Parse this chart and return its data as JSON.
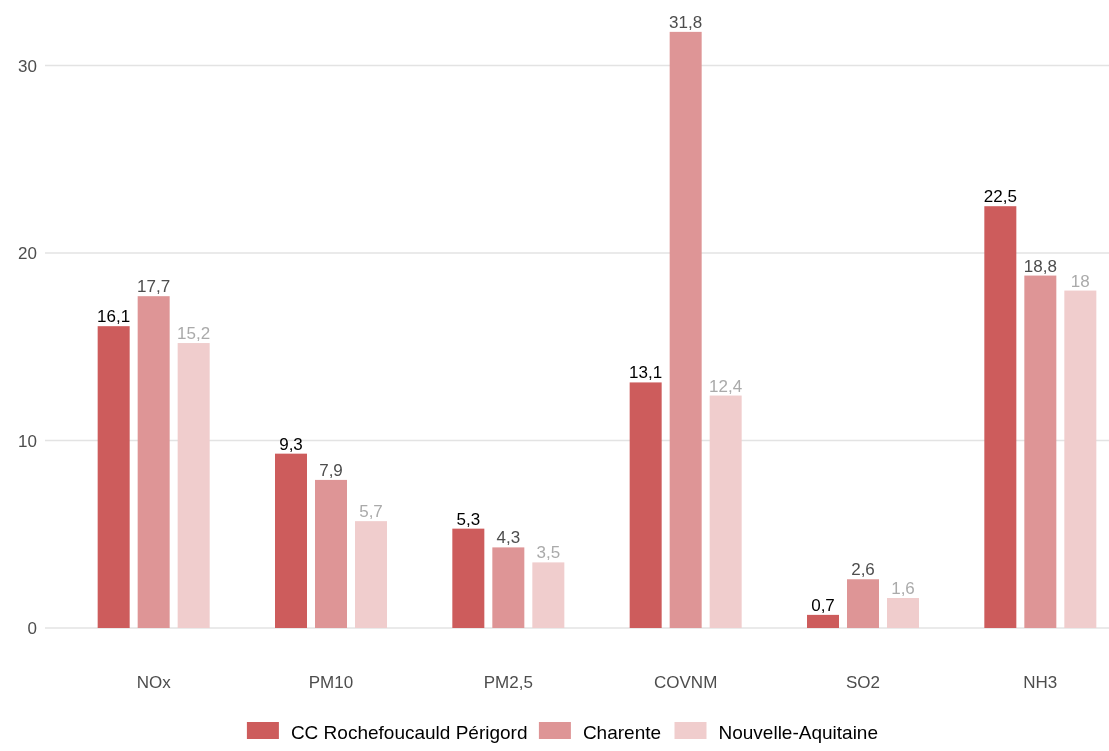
{
  "chart_data": {
    "type": "bar",
    "categories": [
      "NOx",
      "PM10",
      "PM2,5",
      "COVNM",
      "SO2",
      "NH3"
    ],
    "series": [
      {
        "name": "CC Rochefoucauld Périgord",
        "color": "#cd5c5c",
        "values": [
          16.1,
          9.3,
          5.3,
          13.1,
          0.7,
          22.5
        ],
        "value_labels": [
          "16,1",
          "9,3",
          "5,3",
          "13,1",
          "0,7",
          "22,5"
        ]
      },
      {
        "name": "Charente",
        "color": "#de9596",
        "values": [
          17.7,
          7.9,
          4.3,
          31.8,
          2.6,
          18.8
        ],
        "value_labels": [
          "17,7",
          "7,9",
          "4,3",
          "31,8",
          "2,6",
          "18,8"
        ]
      },
      {
        "name": "Nouvelle-Aquitaine",
        "color": "#f0cdcd",
        "values": [
          15.2,
          5.7,
          3.5,
          12.4,
          1.6,
          18
        ],
        "value_labels": [
          "15,2",
          "5,7",
          "3,5",
          "12,4",
          "1,6",
          "18"
        ]
      }
    ],
    "ylim": [
      0,
      33.5
    ],
    "yticks": [
      0,
      10,
      20,
      30
    ],
    "grid": "y",
    "legend": "bottom"
  }
}
